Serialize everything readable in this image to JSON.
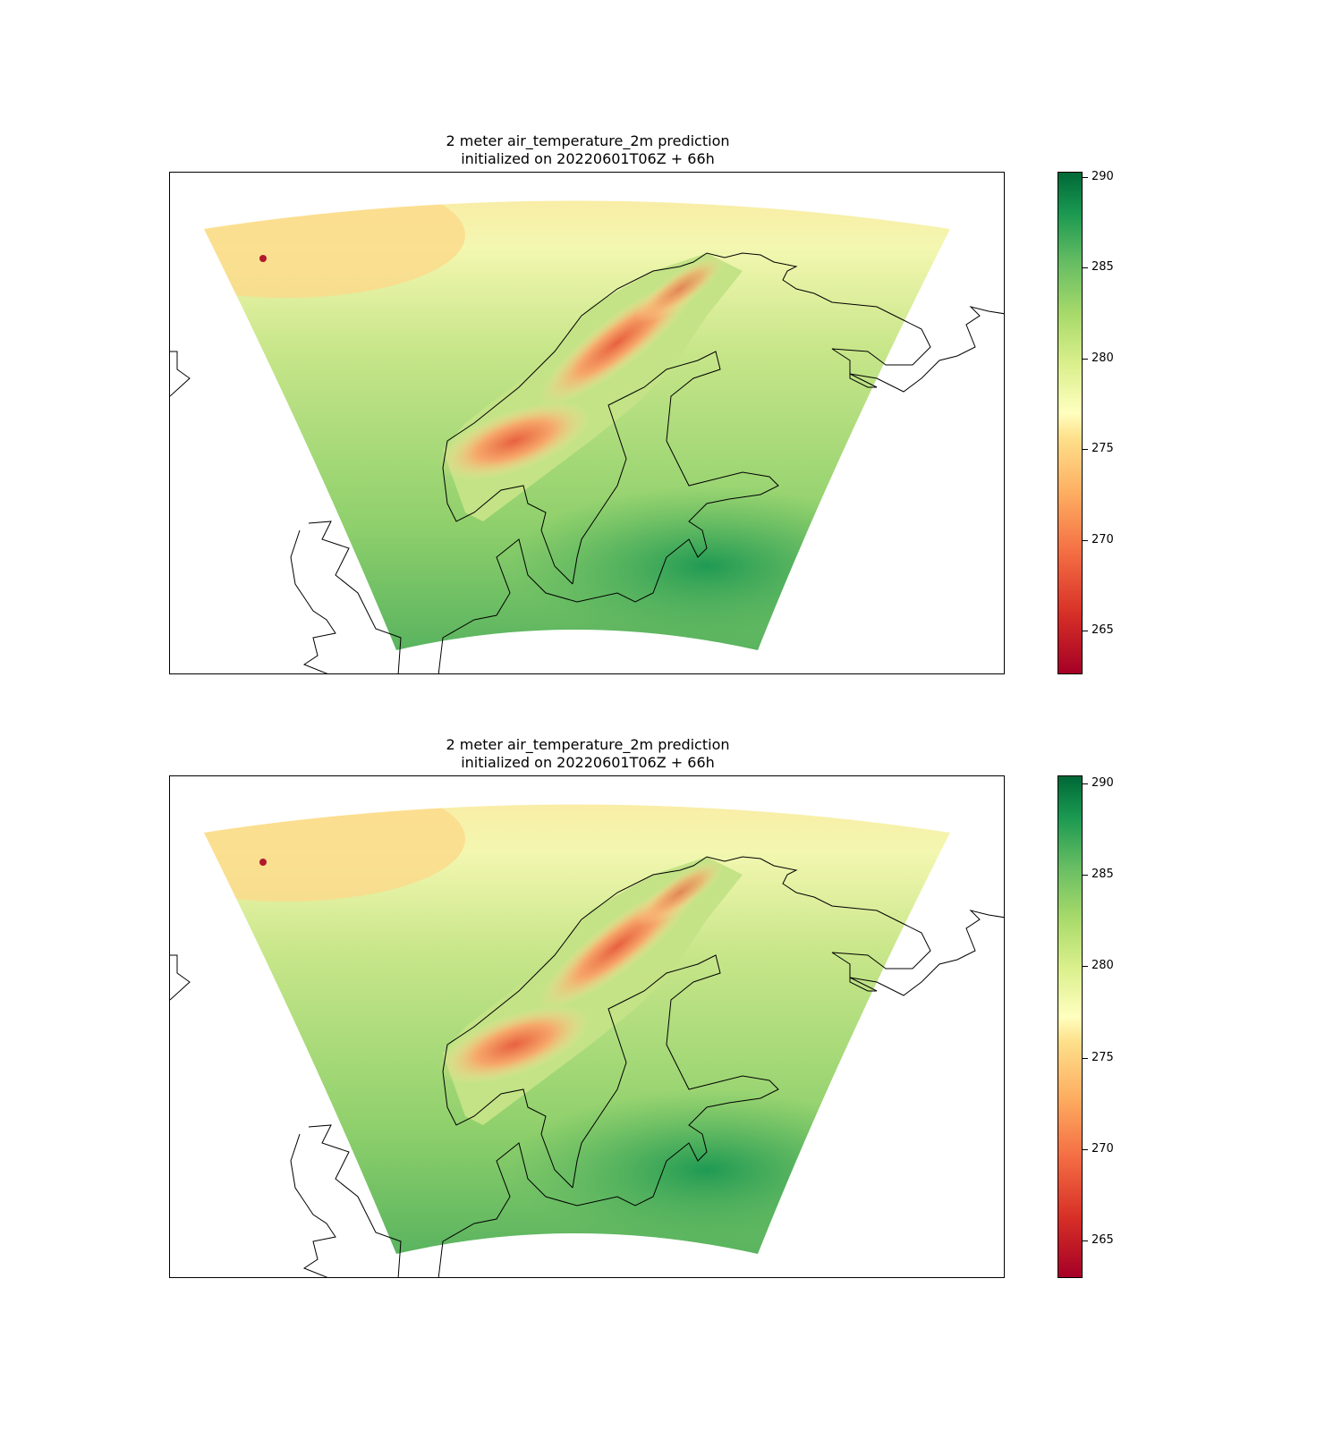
{
  "panels": [
    {
      "title_line1": "2 meter air_temperature_2m prediction",
      "title_line2": "initialized on 20220601T06Z + 66h",
      "colorbar": {
        "min": 262.5,
        "max": 290.2,
        "ticks": [
          "265",
          "270",
          "275",
          "280",
          "285",
          "290"
        ]
      }
    },
    {
      "title_line1": "2 meter air_temperature_2m prediction",
      "title_line2": "initialized on 20220601T06Z + 66h",
      "colorbar": {
        "min": 262.8,
        "max": 290.4,
        "ticks": [
          "265",
          "270",
          "275",
          "280",
          "285",
          "290"
        ]
      }
    }
  ],
  "colormap": [
    "#a50026",
    "#d73027",
    "#f46d43",
    "#fdae61",
    "#fee08b",
    "#ffffbf",
    "#d9ef8b",
    "#a6d96a",
    "#66bd63",
    "#1a9850",
    "#006837"
  ],
  "map_region": "Scandinavia"
}
